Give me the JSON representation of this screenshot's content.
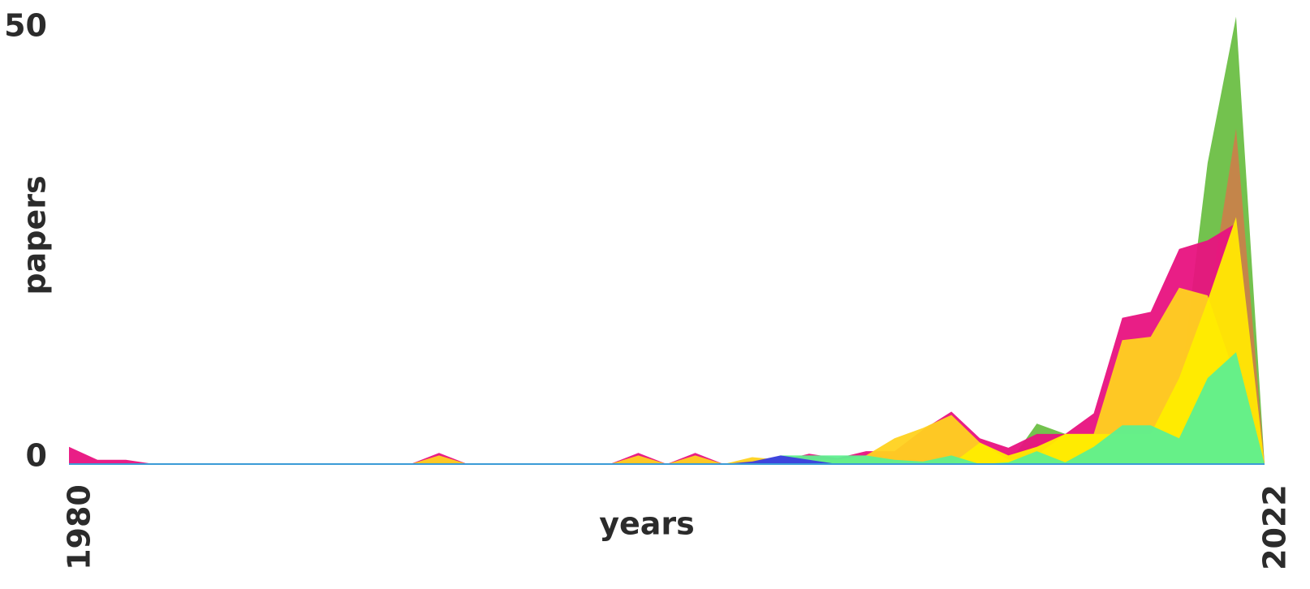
{
  "chart_data": {
    "type": "area",
    "x_label": "years",
    "y_label": "papers",
    "x": [
      1980,
      1981,
      1982,
      1983,
      1984,
      1985,
      1986,
      1987,
      1988,
      1989,
      1990,
      1991,
      1992,
      1993,
      1994,
      1995,
      1996,
      1997,
      1998,
      1999,
      2000,
      2001,
      2002,
      2003,
      2004,
      2005,
      2006,
      2007,
      2008,
      2009,
      2010,
      2011,
      2012,
      2013,
      2014,
      2015,
      2016,
      2017,
      2018,
      2019,
      2020,
      2021,
      2022
    ],
    "xlim": [
      1980,
      2022
    ],
    "xticks": [
      1980,
      2022
    ],
    "ylim": [
      0,
      53
    ],
    "yticks": [
      0,
      50
    ],
    "series": [
      {
        "color": "#6cbf45",
        "values": [
          0,
          0,
          0,
          0,
          0,
          0,
          0,
          0,
          0,
          0,
          0,
          0,
          0,
          0,
          0,
          0,
          0,
          0,
          0,
          0,
          0,
          0,
          0,
          0,
          0,
          0,
          0,
          0,
          0,
          0,
          0,
          0,
          0,
          0,
          4.7,
          3.5,
          3.5,
          3.5,
          3.5,
          8,
          35,
          52,
          0
        ]
      },
      {
        "color": "#c8824a",
        "values": [
          0,
          0,
          0,
          0,
          0,
          0,
          0,
          0,
          0,
          0,
          0,
          0,
          0,
          0,
          0,
          0,
          0,
          0,
          0,
          0,
          0,
          0,
          0,
          0,
          0,
          0,
          0,
          0,
          0,
          0,
          0,
          0,
          0,
          1,
          2.5,
          3.5,
          3.5,
          3.5,
          3.5,
          5,
          18,
          39,
          0
        ]
      },
      {
        "color": "#e8127f",
        "values": [
          2,
          0.5,
          0.5,
          0,
          0,
          0,
          0,
          0,
          0,
          0,
          0,
          0,
          0,
          1.3,
          0,
          0,
          0,
          0,
          0,
          0,
          1.3,
          0,
          1.3,
          0,
          0.4,
          0.4,
          1.2,
          0.7,
          1.5,
          1.5,
          4,
          6.1,
          3,
          1.9,
          3.5,
          3.5,
          5.9,
          17,
          17.7,
          25,
          26,
          28,
          0
        ]
      },
      {
        "color": "#ffd21f",
        "values": [
          0,
          0,
          0,
          0,
          0,
          0,
          0,
          0,
          0,
          0,
          0,
          0,
          0,
          1,
          0,
          0,
          0,
          0,
          0,
          0,
          1,
          0,
          1,
          0,
          0.8,
          0.5,
          0.5,
          0.5,
          1,
          3,
          4.2,
          5.7,
          2.5,
          0.5,
          1,
          3.5,
          3.5,
          14.4,
          14.8,
          20.5,
          19.6,
          10,
          0
        ]
      },
      {
        "color": "#ffed00",
        "values": [
          0,
          0,
          0,
          0,
          0,
          0,
          0,
          0,
          0,
          0,
          0,
          0,
          0,
          0,
          0,
          0,
          0,
          0,
          0,
          0,
          0,
          0,
          0,
          0,
          0,
          0,
          0,
          0,
          0,
          0,
          0,
          0,
          2.5,
          1,
          2,
          3.5,
          3.5,
          3.5,
          3.5,
          10,
          19,
          28.7,
          0
        ]
      },
      {
        "color": "#5ef08f",
        "values": [
          0,
          0,
          0,
          0,
          0,
          0,
          0,
          0,
          0,
          0,
          0,
          0,
          0,
          0,
          0,
          0,
          0,
          0,
          0,
          0,
          0,
          0,
          0,
          0,
          0,
          1,
          1,
          1,
          1,
          0.5,
          0.3,
          1,
          0,
          0.2,
          1.5,
          0.2,
          2,
          4.5,
          4.5,
          3,
          10,
          13,
          0
        ]
      },
      {
        "color": "#3b3be0",
        "values": [
          0,
          0,
          0,
          0,
          0,
          0,
          0,
          0,
          0,
          0,
          0,
          0,
          0,
          0,
          0,
          0,
          0,
          0,
          0,
          0,
          0,
          0,
          0,
          0,
          0.3,
          1,
          0.5,
          0,
          0,
          0,
          0,
          0,
          0,
          0,
          0,
          0,
          0,
          0,
          0,
          0,
          0,
          0,
          0
        ]
      }
    ]
  }
}
